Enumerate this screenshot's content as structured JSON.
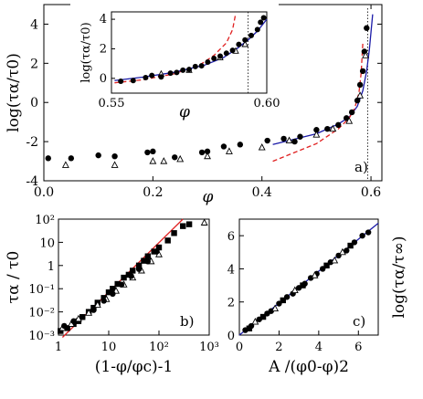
{
  "chart_data": [
    {
      "id": "a",
      "type": "scatter",
      "panel_label": "a)",
      "xlabel": "φ",
      "ylabel": "log(τα/τ0)",
      "xlim": [
        0,
        0.62
      ],
      "ylim": [
        -4,
        5
      ],
      "xticks": [
        "0.0",
        "0.2",
        "0.4",
        "0.6"
      ],
      "yticks": [
        "-4",
        "-2",
        "0",
        "2",
        "4"
      ],
      "series": [
        {
          "marker": "filled-circle",
          "x": [
            0.008,
            0.05,
            0.1,
            0.13,
            0.19,
            0.2,
            0.24,
            0.29,
            0.3,
            0.33,
            0.36,
            0.41,
            0.44,
            0.46,
            0.47,
            0.5,
            0.52,
            0.54,
            0.555,
            0.565,
            0.575,
            0.58,
            0.585,
            0.588,
            0.592
          ],
          "y": [
            -2.85,
            -2.85,
            -2.7,
            -2.75,
            -2.55,
            -2.5,
            -2.8,
            -2.55,
            -2.5,
            -2.25,
            -2.15,
            -1.95,
            -1.85,
            -2.0,
            -1.75,
            -1.4,
            -1.35,
            -1.15,
            -0.8,
            -0.5,
            0.1,
            0.9,
            1.6,
            2.6,
            3.8
          ]
        },
        {
          "marker": "open-triangle",
          "x": [
            0.04,
            0.13,
            0.2,
            0.22,
            0.25,
            0.3,
            0.34,
            0.4,
            0.45,
            0.5,
            0.53,
            0.56,
            0.58,
            0.59
          ],
          "y": [
            -3.2,
            -3.2,
            -3.0,
            -3.0,
            -2.9,
            -2.75,
            -2.5,
            -2.3,
            -1.95,
            -1.65,
            -1.35,
            -0.95,
            0.35,
            2.4
          ]
        }
      ],
      "fit_lines": [
        {
          "style": "blue-solid",
          "x": [
            0.42,
            0.5,
            0.54,
            0.56,
            0.575,
            0.585,
            0.592,
            0.597,
            0.6,
            0.603
          ],
          "y": [
            -2.15,
            -1.6,
            -1.1,
            -0.75,
            -0.2,
            0.6,
            1.6,
            2.7,
            3.6,
            4.5
          ]
        },
        {
          "style": "red-dashed",
          "x": [
            0.42,
            0.5,
            0.54,
            0.56,
            0.57,
            0.578,
            0.582,
            0.585
          ],
          "y": [
            -3.0,
            -2.1,
            -1.35,
            -0.8,
            -0.3,
            0.5,
            1.5,
            3.0
          ]
        }
      ],
      "vline_x": 0.594,
      "inset": {
        "xlabel": "φ",
        "ylabel": "log(τα/τ0)",
        "xlim": [
          0.55,
          0.6
        ],
        "ylim": [
          -1,
          4.5
        ],
        "xticks": [
          "0.55",
          "0.60"
        ],
        "yticks": [
          "0",
          "2",
          "4"
        ],
        "points_circle": {
          "x": [
            0.553,
            0.557,
            0.561,
            0.563,
            0.566,
            0.569,
            0.571,
            0.573,
            0.575,
            0.577,
            0.579,
            0.581,
            0.583,
            0.585,
            0.587,
            0.589,
            0.591,
            0.593,
            0.595,
            0.597,
            0.598,
            0.599
          ],
          "y": [
            -0.2,
            -0.15,
            0.05,
            0.2,
            0.1,
            0.35,
            0.4,
            0.55,
            0.6,
            0.8,
            0.85,
            1.1,
            1.35,
            1.5,
            1.7,
            1.9,
            2.3,
            2.6,
            2.9,
            3.3,
            3.8,
            4.1
          ]
        },
        "points_triangle": {
          "x": [
            0.566,
            0.575,
            0.585,
            0.59,
            0.593
          ],
          "y": [
            0.3,
            0.55,
            1.4,
            1.85,
            2.3
          ]
        },
        "blue": {
          "x": [
            0.551,
            0.56,
            0.57,
            0.58,
            0.586,
            0.59,
            0.594,
            0.597,
            0.6
          ],
          "y": [
            -0.15,
            0.08,
            0.4,
            0.9,
            1.4,
            1.95,
            2.6,
            3.2,
            4.0
          ]
        },
        "red": {
          "x": [
            0.551,
            0.56,
            0.57,
            0.578,
            0.583,
            0.587,
            0.589,
            0.59
          ],
          "y": [
            -0.3,
            -0.1,
            0.3,
            0.85,
            1.55,
            2.4,
            3.3,
            4.4
          ]
        },
        "vline_x": 0.594
      }
    },
    {
      "id": "b",
      "type": "scatter",
      "panel_label": "b)",
      "xlabel": "(1-φ/φc)-1",
      "ylabel": "τα / τ0",
      "x_scale": "log",
      "y_scale": "log",
      "xlim": [
        1,
        1000
      ],
      "ylim": [
        0.001,
        100
      ],
      "xticks": [
        "1",
        "10",
        "10²",
        "10³"
      ],
      "yticks": [
        "10⁻³",
        "10⁻²",
        "10⁻¹",
        "1",
        "10",
        "10²"
      ],
      "series": [
        {
          "marker": "filled-square",
          "x": [
            1.1,
            1.5,
            2,
            2.5,
            3,
            4,
            5,
            6,
            8,
            10,
            12,
            15,
            20,
            25,
            30,
            40,
            50,
            60,
            80,
            100,
            150,
            200,
            300,
            400
          ],
          "y": [
            0.0015,
            0.002,
            0.003,
            0.004,
            0.006,
            0.01,
            0.015,
            0.025,
            0.04,
            0.07,
            0.1,
            0.16,
            0.3,
            0.4,
            0.6,
            1.0,
            1.6,
            2.5,
            4,
            6,
            12,
            25,
            50,
            60
          ]
        },
        {
          "marker": "open-triangle",
          "x": [
            1.2,
            1.8,
            2.5,
            4,
            6,
            9,
            14,
            20,
            30,
            45,
            70,
            100,
            800
          ],
          "y": [
            0.002,
            0.003,
            0.005,
            0.009,
            0.02,
            0.035,
            0.08,
            0.15,
            0.3,
            0.6,
            1.5,
            3,
            70
          ]
        },
        {
          "marker": "filled-circle",
          "x": [
            1.3,
            2,
            3,
            5,
            8,
            12,
            18,
            28,
            40,
            60,
            90
          ],
          "y": [
            0.0025,
            0.004,
            0.006,
            0.012,
            0.03,
            0.06,
            0.15,
            0.35,
            0.7,
            1.5,
            4
          ]
        }
      ],
      "fit_lines": [
        {
          "style": "red-solid",
          "x": [
            1.2,
            300
          ],
          "y": [
            0.0008,
            100
          ]
        }
      ]
    },
    {
      "id": "c",
      "type": "scatter",
      "panel_label": "c)",
      "xlabel": "A /(φ0-φ)2",
      "ylabel": "log(τα/τ∞)",
      "xlim": [
        0,
        7
      ],
      "ylim": [
        0,
        7
      ],
      "xticks": [
        "0",
        "2",
        "4",
        "6"
      ],
      "yticks": [
        "0",
        "2",
        "4",
        "6"
      ],
      "series": [
        {
          "marker": "filled-circle",
          "x": [
            0.3,
            0.6,
            1.0,
            1.4,
            1.6,
            2.0,
            2.4,
            2.7,
            3.0,
            3.3,
            3.6,
            3.9,
            4.2,
            4.6,
            5.0,
            5.4,
            5.8,
            6.2,
            6.5
          ],
          "y": [
            0.3,
            0.55,
            0.95,
            1.3,
            1.45,
            1.9,
            2.3,
            2.5,
            2.85,
            3.1,
            3.45,
            3.7,
            4.0,
            4.4,
            4.8,
            5.1,
            5.6,
            6.0,
            6.2
          ]
        },
        {
          "marker": "filled-square",
          "x": [
            0.5,
            1.2,
            2.2,
            3.2,
            4.4,
            5.6
          ],
          "y": [
            0.4,
            1.1,
            2.1,
            3.0,
            4.2,
            5.4
          ]
        },
        {
          "marker": "open-triangle",
          "x": [
            0.8,
            1.8,
            2.8,
            3.8,
            4.8,
            5.2
          ],
          "y": [
            0.8,
            1.6,
            2.7,
            3.6,
            4.5,
            5.0
          ]
        }
      ],
      "fit_lines": [
        {
          "style": "blue-solid",
          "x": [
            0,
            7
          ],
          "y": [
            0,
            6.75
          ]
        }
      ]
    }
  ]
}
